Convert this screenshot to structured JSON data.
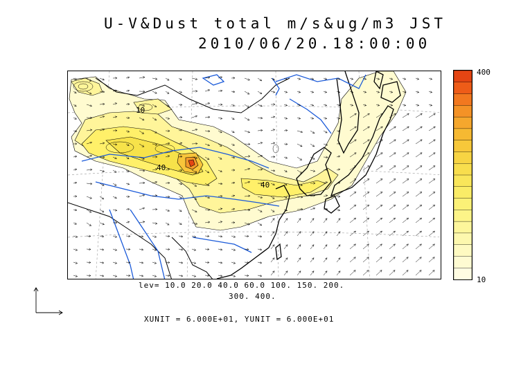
{
  "title": {
    "line1": "U-V&Dust total m/s&ug/m3 JST",
    "line2": "2010/06/20.18:00:00"
  },
  "map": {
    "contour_labels": [
      "10",
      "40",
      "40"
    ],
    "fill_colors": {
      "level10": "#fffbd0",
      "level20": "#fff59a",
      "level40": "#fff069",
      "level60": "#f7e24a",
      "level100": "#f8c53a",
      "level150": "#f49a2a",
      "level200": "#ee6a1f",
      "level400": "#e44513"
    },
    "coastline_color": "#000000",
    "river_color": "#1a5ad9",
    "vector_color": "#000000"
  },
  "colorbar": {
    "max_label": "400",
    "min_label": "10",
    "colors": [
      "#e44513",
      "#ee5c18",
      "#f2781f",
      "#f49226",
      "#f5a72d",
      "#f6b932",
      "#f7c83a",
      "#f7d443",
      "#f8de4d",
      "#f9e65a",
      "#faec67",
      "#fbf177",
      "#fcf488",
      "#fdf69b",
      "#fdf8ae",
      "#fefac1",
      "#fefbd2",
      "#fffce2"
    ]
  },
  "legend": {
    "levels_line1": "lev= 10.0 20.0 40.0 60.0 100. 150. 200.",
    "levels_line2": "300. 400.",
    "units": "XUNIT = 6.000E+01, YUNIT = 6.000E+01"
  }
}
